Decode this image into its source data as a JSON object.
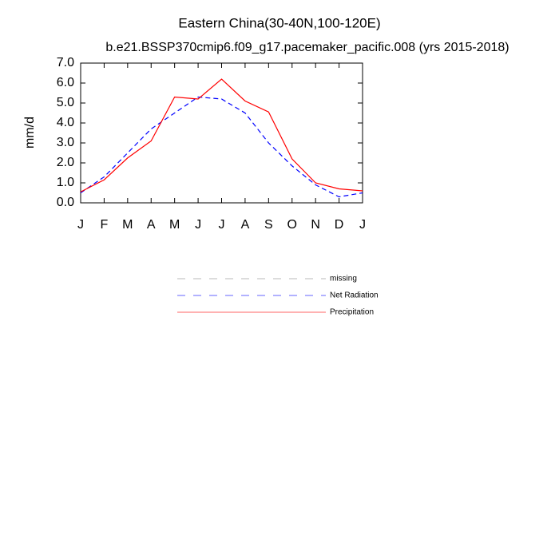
{
  "chart_data": {
    "type": "line",
    "title": "Eastern China(30-40N,100-120E)",
    "subtitle": "b.e21.BSSP370cmip6.f09_g17.pacemaker_pacific.008 (yrs 2015-2018)",
    "y_label": "mm/d",
    "categories": [
      "J",
      "F",
      "M",
      "A",
      "M",
      "J",
      "J",
      "A",
      "S",
      "O",
      "N",
      "D",
      "J"
    ],
    "series": [
      {
        "name": "missing",
        "color": "#888888",
        "dashed": true,
        "values": [
          null,
          null,
          null,
          null,
          null,
          null,
          null,
          null,
          null,
          null,
          null,
          null,
          null
        ]
      },
      {
        "name": "Net Radiation",
        "color": "#0000ff",
        "dashed": true,
        "values": [
          0.5,
          1.3,
          2.5,
          3.7,
          4.5,
          5.3,
          5.2,
          4.5,
          3.0,
          1.85,
          0.9,
          0.3,
          0.5
        ]
      },
      {
        "name": "Precipitation",
        "color": "#ff0000",
        "dashed": false,
        "values": [
          0.55,
          1.15,
          2.25,
          3.1,
          5.3,
          5.2,
          6.2,
          5.1,
          4.55,
          2.2,
          1.0,
          0.7,
          0.6
        ]
      }
    ],
    "ylim": [
      0,
      7
    ],
    "yticks": [
      {
        "value": 0,
        "label": "0.0"
      },
      {
        "value": 1,
        "label": "1.0"
      },
      {
        "value": 2,
        "label": "2.0"
      },
      {
        "value": 3,
        "label": "3.0"
      },
      {
        "value": 4,
        "label": "4.0"
      },
      {
        "value": 5,
        "label": "5.0"
      },
      {
        "value": 6,
        "label": "6.0"
      },
      {
        "value": 7,
        "label": "7.0"
      }
    ]
  }
}
